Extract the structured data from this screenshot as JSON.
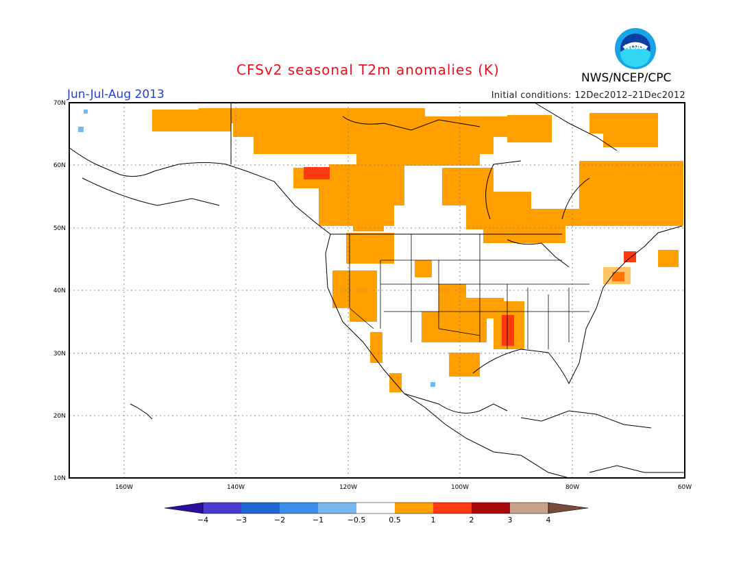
{
  "title": "CFSv2 seasonal T2m anomalies (K)",
  "period": "Jun-Jul-Aug 2013",
  "initial_conditions": "Initial conditions: 12Dec2012–21Dec2012",
  "agency": "NWS/NCEP/CPC",
  "logo_text": "NOAA",
  "lat_labels": [
    "70N",
    "60N",
    "50N",
    "40N",
    "30N",
    "20N",
    "10N"
  ],
  "lon_labels": [
    "160W",
    "140W",
    "120W",
    "100W",
    "80W",
    "60W"
  ],
  "colorbar": {
    "labels": [
      "−4",
      "−3",
      "−2",
      "−1",
      "−0.5",
      "0.5",
      "1",
      "2",
      "3",
      "4"
    ],
    "colors": [
      "#2a0e9c",
      "#4a3ccf",
      "#1f66d4",
      "#3a8ee8",
      "#78b8f0",
      "#ffffff",
      "#ff9f00",
      "#ff3a10",
      "#a80808",
      "#c8a08c",
      "#7a4a3a"
    ]
  }
}
